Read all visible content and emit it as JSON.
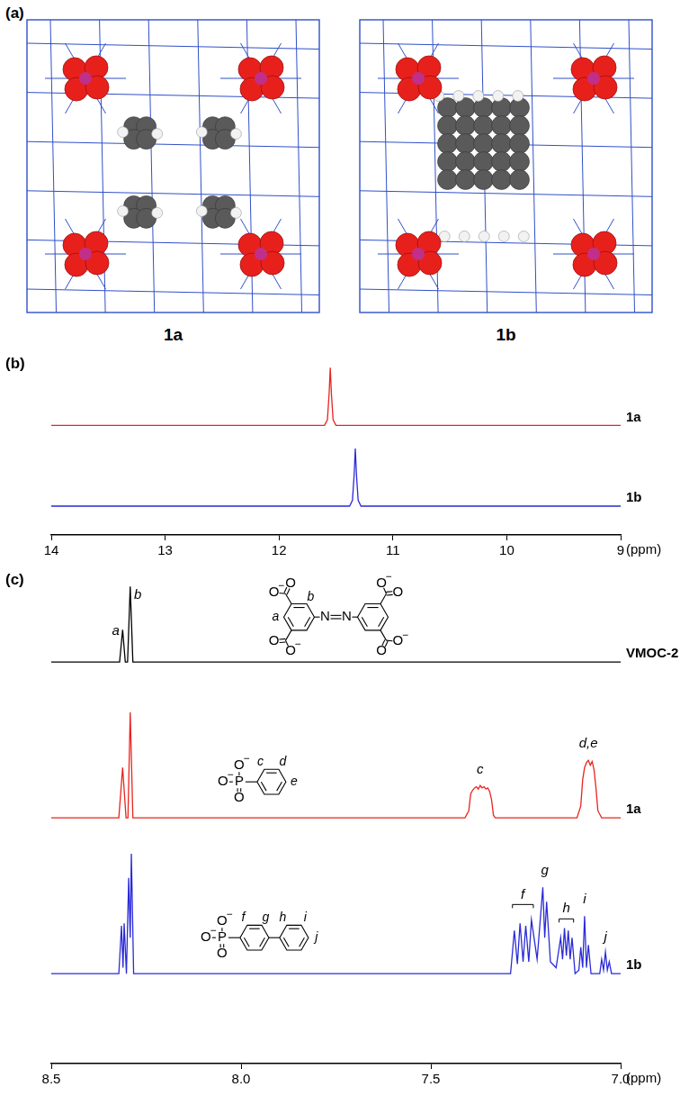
{
  "panel_a": {
    "panel_label": "(a)",
    "structures": [
      "1a",
      "1b"
    ]
  },
  "chart_data": [
    {
      "type": "line",
      "panel_label": "(b)",
      "x_label": "(ppm)",
      "xlim": [
        14,
        9
      ],
      "xticks": [
        14,
        13,
        12,
        11,
        10,
        9
      ],
      "ylim": [
        -0.5,
        2.5
      ],
      "tick_labels": "x",
      "grid": false,
      "series": [
        {
          "name": "1a",
          "color": "#e8251f",
          "x": [
            14,
            11.6,
            11.575,
            11.56,
            11.55,
            11.54,
            11.525,
            11.5,
            9
          ],
          "values": [
            1.4,
            1.4,
            1.5,
            1.95,
            2.4,
            1.95,
            1.5,
            1.4,
            1.4
          ]
        },
        {
          "name": "1b",
          "color": "#2a2ad8",
          "x": [
            14,
            11.38,
            11.355,
            11.34,
            11.33,
            11.32,
            11.305,
            11.28,
            9
          ],
          "values": [
            0,
            0,
            0.1,
            0.55,
            1.0,
            0.55,
            0.1,
            0,
            0
          ]
        }
      ]
    },
    {
      "type": "line",
      "panel_label": "(c)",
      "x_label": "(ppm)",
      "xlim": [
        8.5,
        7.0
      ],
      "xticks": [
        8.5,
        {
          "value": 8,
          "label": "8.0"
        },
        7.5,
        {
          "value": 7,
          "label": "7.0"
        }
      ],
      "ylim": [
        -0.75,
        3.3
      ],
      "tick_labels": "x",
      "grid": false,
      "series": [
        {
          "name": "VMOC-2",
          "color": "#000000",
          "x": [
            8.5,
            8.32,
            8.312,
            8.305,
            8.299,
            8.292,
            8.285,
            7.0
          ],
          "values": [
            2.6,
            2.6,
            2.87,
            2.6,
            2.6,
            3.23,
            2.6,
            2.6
          ]
        },
        {
          "name": "1a",
          "color": "#e8251f",
          "x": [
            8.5,
            8.322,
            8.312,
            8.303,
            8.298,
            8.292,
            8.285,
            7.41,
            7.4,
            7.395,
            7.39,
            7.385,
            7.38,
            7.375,
            7.37,
            7.365,
            7.36,
            7.355,
            7.35,
            7.345,
            7.34,
            7.335,
            7.33,
            7.115,
            7.105,
            7.1,
            7.095,
            7.09,
            7.085,
            7.08,
            7.075,
            7.07,
            7.065,
            7.06,
            7.05,
            7.0
          ],
          "values": [
            1.3,
            1.3,
            1.72,
            1.3,
            1.3,
            2.18,
            1.3,
            1.3,
            1.36,
            1.5,
            1.53,
            1.55,
            1.56,
            1.54,
            1.57,
            1.55,
            1.56,
            1.54,
            1.55,
            1.52,
            1.45,
            1.32,
            1.3,
            1.3,
            1.4,
            1.62,
            1.72,
            1.76,
            1.78,
            1.74,
            1.77,
            1.7,
            1.55,
            1.36,
            1.3,
            1.3
          ]
        },
        {
          "name": "1b",
          "color": "#2a2ad8",
          "x": [
            8.5,
            8.322,
            8.315,
            8.311,
            8.308,
            8.302,
            8.296,
            8.292,
            8.289,
            8.283,
            7.29,
            7.28,
            7.272,
            7.265,
            7.257,
            7.25,
            7.242,
            7.235,
            7.22,
            7.205,
            7.2,
            7.195,
            7.185,
            7.17,
            7.158,
            7.153,
            7.148,
            7.143,
            7.138,
            7.133,
            7.128,
            7.12,
            7.11,
            7.105,
            7.1,
            7.095,
            7.09,
            7.085,
            7.078,
            7.055,
            7.05,
            7.045,
            7.04,
            7.035,
            7.03,
            7.024,
            7.0
          ],
          "values": [
            0,
            0,
            0.4,
            0.05,
            0.42,
            0,
            0.8,
            0.3,
            1.0,
            0,
            0,
            0.36,
            0.08,
            0.42,
            0.1,
            0.4,
            0.1,
            0.45,
            0.12,
            0.72,
            0.3,
            0.6,
            0.1,
            0.05,
            0.3,
            0.12,
            0.38,
            0.15,
            0.36,
            0.12,
            0.3,
            0,
            0.03,
            0.22,
            0.05,
            0.48,
            0.05,
            0.24,
            0,
            0,
            0.12,
            0.03,
            0.18,
            0.03,
            0.1,
            0,
            0
          ]
        }
      ],
      "annotations": [
        {
          "text": "a",
          "x": 8.33,
          "y": 2.86
        },
        {
          "text": "b",
          "x": 8.272,
          "y": 3.16
        },
        {
          "text": "c",
          "x": 7.37,
          "y": 1.7
        },
        {
          "text": "d,e",
          "x": 7.085,
          "y": 1.92
        },
        {
          "text": "f",
          "x": 7.258,
          "y": 0.66,
          "bracket": [
            7.285,
            7.23
          ]
        },
        {
          "text": "g",
          "x": 7.2,
          "y": 0.86
        },
        {
          "text": "h",
          "x": 7.143,
          "y": 0.54,
          "bracket": [
            7.162,
            7.124
          ]
        },
        {
          "text": "i",
          "x": 7.095,
          "y": 0.62
        },
        {
          "text": "j",
          "x": 7.04,
          "y": 0.3
        }
      ],
      "structures": [
        {
          "series": "VMOC-2",
          "oxygen": "O",
          "charge": "−",
          "nitrogen": "N",
          "protons": [
            "a",
            "b"
          ]
        },
        {
          "series": "1a",
          "oxygen": "O",
          "charge": "−",
          "phosphorus": "P",
          "protons": [
            "c",
            "d",
            "e"
          ]
        },
        {
          "series": "1b",
          "oxygen": "O",
          "charge": "−",
          "phosphorus": "P",
          "protons": [
            "f",
            "g",
            "h",
            "i",
            "j"
          ]
        }
      ]
    }
  ]
}
